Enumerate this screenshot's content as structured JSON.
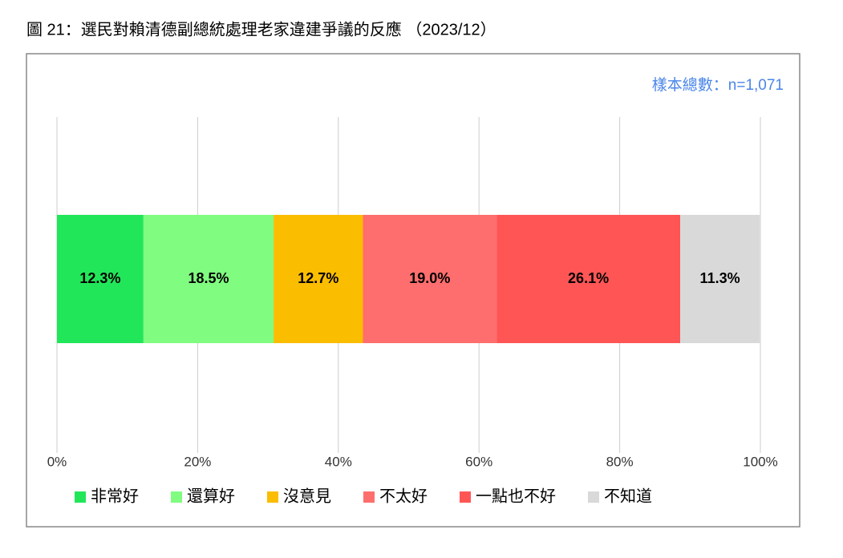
{
  "chart_data": {
    "type": "stacked-bar-horizontal",
    "title": "圖 21：選民對賴清德副總統處理老家違建爭議的反應 （2023/12）",
    "annotation": "樣本總數：n=1,071",
    "categories": [
      null
    ],
    "series": [
      {
        "name": "非常好",
        "color": "#22e65a",
        "values": [
          12.3
        ],
        "value_labels": [
          "12.3%"
        ]
      },
      {
        "name": "還算好",
        "color": "#80fc80",
        "values": [
          18.5
        ],
        "value_labels": [
          "18.5%"
        ]
      },
      {
        "name": "沒意見",
        "color": "#fbbd00",
        "values": [
          12.7
        ],
        "value_labels": [
          "12.7%"
        ]
      },
      {
        "name": "不太好",
        "color": "#ff6e6e",
        "values": [
          19.0
        ],
        "value_labels": [
          "19.0%"
        ]
      },
      {
        "name": "一點也不好",
        "color": "#ff5555",
        "values": [
          26.1
        ],
        "value_labels": [
          "26.1%"
        ]
      },
      {
        "name": "不知道",
        "color": "#d9d9d9",
        "values": [
          11.3
        ],
        "value_labels": [
          "11.3%"
        ]
      }
    ],
    "xlim": [
      0,
      100
    ],
    "xticks": [
      {
        "value": 0,
        "label": "0%"
      },
      {
        "value": 20,
        "label": "20%"
      },
      {
        "value": 40,
        "label": "40%"
      },
      {
        "value": 60,
        "label": "60%"
      },
      {
        "value": 80,
        "label": "80%"
      },
      {
        "value": 100,
        "label": "100%"
      }
    ],
    "grid": true,
    "legend": "bottom"
  }
}
